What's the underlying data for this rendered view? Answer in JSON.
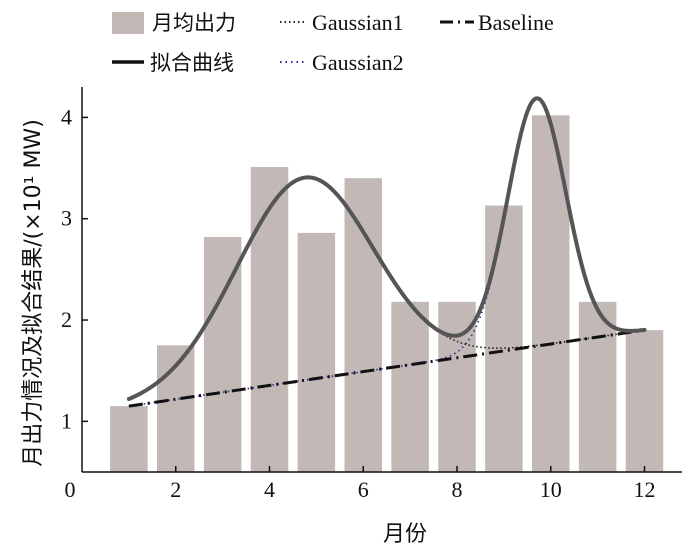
{
  "chart_data": {
    "type": "bar",
    "xlabel": "月份",
    "ylabel": "月出力情况及拟合结果/(×10¹ MW)",
    "xlim": [
      0,
      12.8
    ],
    "ylim": [
      0.5,
      4.3
    ],
    "x_ticks": [
      "0",
      "2",
      "4",
      "6",
      "8",
      "10",
      "12"
    ],
    "y_ticks": [
      "1",
      "2",
      "3",
      "4"
    ],
    "colors": {
      "bar": "#c2b8b5",
      "fit": "#555555",
      "baseline": "#111111",
      "gaussian1": "#222222",
      "gaussian2": "#2a2aa0"
    },
    "legend": {
      "placement": "top",
      "items": [
        {
          "label": "月均出力",
          "style": "bar"
        },
        {
          "label": "Gaussian1",
          "style": "dotted"
        },
        {
          "label": "Baseline",
          "style": "dashdot"
        },
        {
          "label": "拟合曲线",
          "style": "solid"
        },
        {
          "label": "Gaussian2",
          "style": "dotted-blue"
        }
      ]
    },
    "bars": {
      "name": "月均出力",
      "x": [
        1,
        2,
        3,
        4,
        5,
        6,
        7,
        8,
        9,
        10,
        11,
        12
      ],
      "values": [
        1.15,
        1.75,
        2.82,
        3.51,
        2.86,
        3.4,
        2.18,
        2.18,
        3.13,
        4.02,
        2.18,
        1.9
      ]
    },
    "baseline": {
      "name": "Baseline",
      "x": [
        1,
        12
      ],
      "values": [
        1.15,
        1.9
      ]
    },
    "gaussian1": {
      "name": "Gaussian1",
      "amplitude": 2.0,
      "center": 4.75,
      "sigma": 1.45
    },
    "gaussian2": {
      "name": "Gaussian2",
      "amplitude": 2.44,
      "center": 9.7,
      "sigma": 0.62
    },
    "fit_range": [
      1,
      12
    ]
  }
}
